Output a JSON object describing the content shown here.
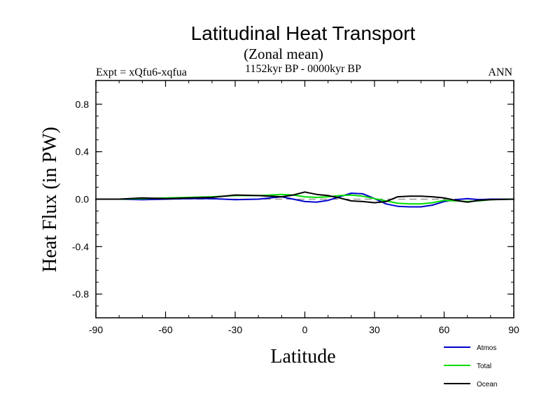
{
  "chart_data": {
    "type": "line",
    "title": "Latitudinal Heat Transport",
    "subtitle": "(Zonal mean)",
    "left_label": "Expt = xQfu6-xqfua",
    "center_label": "1152kyr BP - 0000kyr BP",
    "right_label": "ANN",
    "xlabel": "Latitude",
    "ylabel": "Heat Flux (in PW)",
    "xlim": [
      -90,
      90
    ],
    "ylim": [
      -1.0,
      1.0
    ],
    "x_ticks": [
      -90,
      -60,
      -30,
      0,
      30,
      60,
      90
    ],
    "x_tick_labels": [
      "-90",
      "-60",
      "-30",
      "0",
      "30",
      "60",
      "90"
    ],
    "y_ticks": [
      -0.8,
      -0.4,
      0.0,
      0.4,
      0.8
    ],
    "y_tick_labels": [
      "-0.8",
      "-0.4",
      "0.0",
      "0.4",
      "0.8"
    ],
    "zero_line": true,
    "legend_position": "bottom-right",
    "series": [
      {
        "name": "Atmos",
        "color": "#0000cc",
        "x": [
          -90,
          -80,
          -70,
          -60,
          -50,
          -40,
          -30,
          -20,
          -15,
          -10,
          -5,
          0,
          5,
          10,
          15,
          20,
          25,
          30,
          35,
          40,
          45,
          50,
          55,
          60,
          65,
          70,
          75,
          80,
          90
        ],
        "y": [
          0.0,
          0.0,
          -0.005,
          0.0,
          0.005,
          0.005,
          -0.005,
          0.0,
          0.01,
          0.02,
          0.0,
          -0.02,
          -0.025,
          -0.01,
          0.02,
          0.05,
          0.045,
          0.005,
          -0.04,
          -0.06,
          -0.065,
          -0.065,
          -0.05,
          -0.02,
          -0.005,
          0.005,
          -0.005,
          0.0,
          0.0
        ]
      },
      {
        "name": "Total",
        "color": "#00dd00",
        "x": [
          -90,
          -80,
          -70,
          -60,
          -50,
          -40,
          -30,
          -20,
          -15,
          -10,
          -5,
          0,
          5,
          10,
          15,
          20,
          25,
          30,
          35,
          40,
          45,
          50,
          55,
          60,
          65,
          70,
          75,
          80,
          90
        ],
        "y": [
          0.0,
          0.0,
          0.005,
          0.01,
          0.015,
          0.02,
          0.03,
          0.03,
          0.035,
          0.04,
          0.035,
          0.02,
          0.015,
          0.02,
          0.03,
          0.035,
          0.025,
          0.005,
          -0.015,
          -0.035,
          -0.04,
          -0.04,
          -0.03,
          -0.01,
          -0.015,
          -0.02,
          -0.015,
          -0.005,
          0.0
        ]
      },
      {
        "name": "Ocean",
        "color": "#000000",
        "x": [
          -90,
          -80,
          -70,
          -60,
          -50,
          -40,
          -30,
          -20,
          -15,
          -10,
          -5,
          0,
          5,
          10,
          15,
          20,
          25,
          30,
          35,
          40,
          45,
          50,
          55,
          60,
          65,
          70,
          75,
          80,
          90
        ],
        "y": [
          0.0,
          0.0,
          0.01,
          0.005,
          0.01,
          0.015,
          0.035,
          0.03,
          0.025,
          0.02,
          0.035,
          0.06,
          0.04,
          0.03,
          0.01,
          -0.015,
          -0.02,
          -0.03,
          -0.02,
          0.02,
          0.025,
          0.025,
          0.02,
          0.01,
          -0.01,
          -0.025,
          -0.01,
          -0.005,
          0.0
        ]
      }
    ]
  }
}
